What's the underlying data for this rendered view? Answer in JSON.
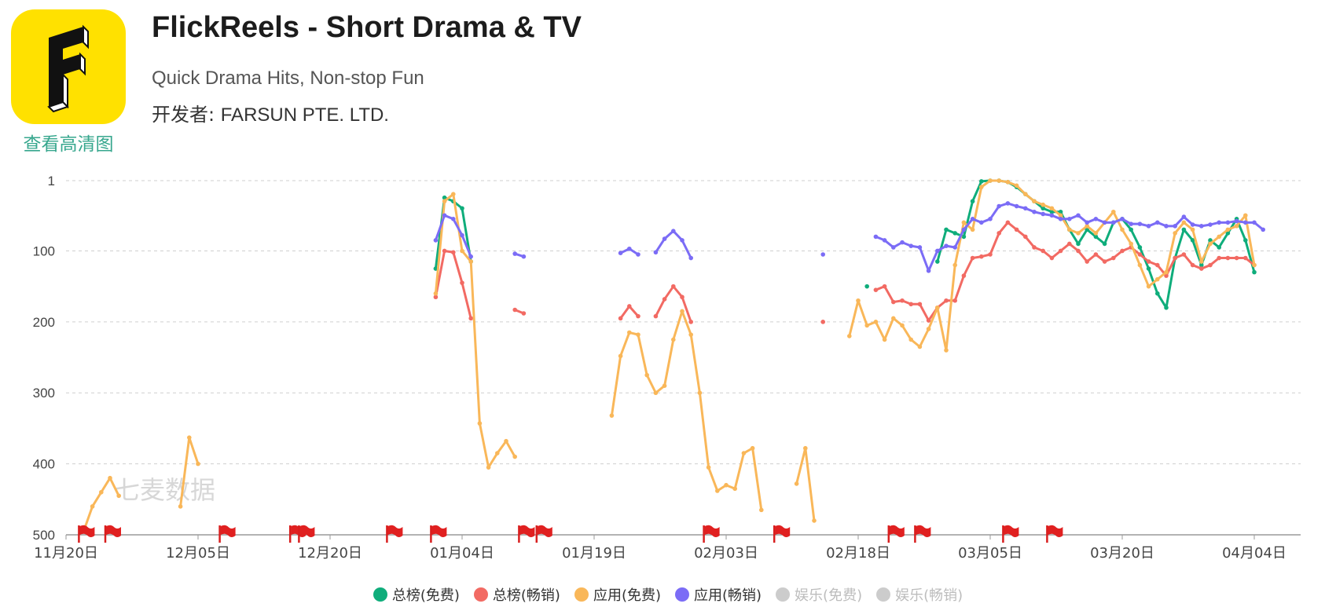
{
  "app": {
    "name": "FlickReels - Short Drama & TV",
    "subtitle": "Quick Drama Hits, Non-stop Fun",
    "developer_label": "开发者: ",
    "developer_name": "FARSUN PTE. LTD.",
    "hd_link": "查看高清图",
    "icon_color": "#FFE100",
    "watermark": "七麦数据"
  },
  "chart_data": {
    "type": "line",
    "y_axis": {
      "inverted": true,
      "ticks": [
        1,
        100,
        200,
        300,
        400,
        500
      ],
      "range": [
        1,
        500
      ]
    },
    "x_axis": {
      "start_date": "11月20日",
      "ticks": [
        "11月20日",
        "12月05日",
        "12月20日",
        "01月04日",
        "01月19日",
        "02月03日",
        "02月18日",
        "03月05日",
        "03月20日",
        "04月04日"
      ]
    },
    "grid": true,
    "legend_position": "bottom",
    "flag_days": [
      2,
      5,
      18,
      26,
      27,
      37,
      42,
      52,
      54,
      73,
      81,
      94,
      97,
      107,
      112
    ],
    "series": [
      {
        "name": "总榜(免费)",
        "color": "#0FAD7B",
        "enabled": true,
        "points": [
          [
            42,
            125
          ],
          [
            43,
            25
          ],
          [
            44,
            30
          ],
          [
            45,
            40
          ],
          [
            46,
            115
          ],
          [
            91,
            150
          ],
          [
            99,
            115
          ],
          [
            100,
            70
          ],
          [
            101,
            75
          ],
          [
            102,
            80
          ],
          [
            103,
            30
          ],
          [
            104,
            2
          ],
          [
            105,
            1
          ],
          [
            106,
            1
          ],
          [
            107,
            3
          ],
          [
            108,
            10
          ],
          [
            109,
            20
          ],
          [
            110,
            30
          ],
          [
            111,
            40
          ],
          [
            112,
            45
          ],
          [
            113,
            45
          ],
          [
            114,
            70
          ],
          [
            115,
            90
          ],
          [
            116,
            70
          ],
          [
            117,
            80
          ],
          [
            118,
            90
          ],
          [
            119,
            60
          ],
          [
            120,
            55
          ],
          [
            121,
            70
          ],
          [
            122,
            95
          ],
          [
            123,
            125
          ],
          [
            124,
            160
          ],
          [
            125,
            180
          ],
          [
            126,
            110
          ],
          [
            127,
            70
          ],
          [
            128,
            85
          ],
          [
            129,
            120
          ],
          [
            130,
            85
          ],
          [
            131,
            95
          ],
          [
            132,
            75
          ],
          [
            133,
            55
          ],
          [
            134,
            85
          ],
          [
            135,
            130
          ]
        ]
      },
      {
        "name": "总榜(畅销)",
        "color": "#F26A63",
        "enabled": true,
        "points": [
          [
            42,
            165
          ],
          [
            43,
            100
          ],
          [
            44,
            102
          ],
          [
            45,
            145
          ],
          [
            46,
            195
          ],
          [
            51,
            183
          ],
          [
            52,
            188
          ],
          [
            63,
            195
          ],
          [
            64,
            178
          ],
          [
            65,
            192
          ],
          [
            67,
            192
          ],
          [
            68,
            168
          ],
          [
            69,
            150
          ],
          [
            70,
            165
          ],
          [
            71,
            200
          ],
          [
            86,
            200
          ],
          [
            92,
            155
          ],
          [
            93,
            150
          ],
          [
            94,
            172
          ],
          [
            95,
            170
          ],
          [
            96,
            175
          ],
          [
            97,
            175
          ],
          [
            98,
            198
          ],
          [
            99,
            180
          ],
          [
            100,
            170
          ],
          [
            101,
            170
          ],
          [
            102,
            135
          ],
          [
            103,
            110
          ],
          [
            104,
            108
          ],
          [
            105,
            105
          ],
          [
            106,
            75
          ],
          [
            107,
            60
          ],
          [
            108,
            70
          ],
          [
            109,
            80
          ],
          [
            110,
            95
          ],
          [
            111,
            100
          ],
          [
            112,
            110
          ],
          [
            113,
            100
          ],
          [
            114,
            90
          ],
          [
            115,
            100
          ],
          [
            116,
            115
          ],
          [
            117,
            105
          ],
          [
            118,
            115
          ],
          [
            119,
            110
          ],
          [
            120,
            100
          ],
          [
            121,
            95
          ],
          [
            122,
            105
          ],
          [
            123,
            115
          ],
          [
            124,
            120
          ],
          [
            125,
            135
          ],
          [
            126,
            110
          ],
          [
            127,
            105
          ],
          [
            128,
            120
          ],
          [
            129,
            125
          ],
          [
            130,
            120
          ],
          [
            131,
            110
          ],
          [
            132,
            110
          ],
          [
            133,
            110
          ],
          [
            134,
            110
          ],
          [
            135,
            120
          ]
        ]
      },
      {
        "name": "应用(免费)",
        "color": "#F9B759",
        "enabled": true,
        "points": [
          [
            2,
            495
          ],
          [
            3,
            460
          ],
          [
            4,
            440
          ],
          [
            5,
            420
          ],
          [
            6,
            445
          ],
          [
            13,
            460
          ],
          [
            14,
            363
          ],
          [
            15,
            400
          ],
          [
            42,
            160
          ],
          [
            43,
            30
          ],
          [
            44,
            20
          ],
          [
            45,
            100
          ],
          [
            46,
            115
          ],
          [
            47,
            343
          ],
          [
            48,
            405
          ],
          [
            49,
            385
          ],
          [
            50,
            368
          ],
          [
            51,
            390
          ],
          [
            62,
            332
          ],
          [
            63,
            248
          ],
          [
            64,
            215
          ],
          [
            65,
            218
          ],
          [
            66,
            275
          ],
          [
            67,
            300
          ],
          [
            68,
            290
          ],
          [
            69,
            225
          ],
          [
            70,
            185
          ],
          [
            71,
            218
          ],
          [
            72,
            300
          ],
          [
            73,
            405
          ],
          [
            74,
            438
          ],
          [
            75,
            430
          ],
          [
            76,
            435
          ],
          [
            77,
            385
          ],
          [
            78,
            378
          ],
          [
            79,
            465
          ],
          [
            83,
            428
          ],
          [
            84,
            378
          ],
          [
            85,
            480
          ],
          [
            89,
            220
          ],
          [
            90,
            170
          ],
          [
            91,
            205
          ],
          [
            92,
            200
          ],
          [
            93,
            225
          ],
          [
            94,
            195
          ],
          [
            95,
            205
          ],
          [
            96,
            225
          ],
          [
            97,
            235
          ],
          [
            98,
            210
          ],
          [
            99,
            180
          ],
          [
            100,
            240
          ],
          [
            101,
            120
          ],
          [
            102,
            60
          ],
          [
            103,
            70
          ],
          [
            104,
            10
          ],
          [
            105,
            1
          ],
          [
            106,
            1
          ],
          [
            107,
            3
          ],
          [
            108,
            8
          ],
          [
            109,
            20
          ],
          [
            110,
            30
          ],
          [
            111,
            35
          ],
          [
            112,
            40
          ],
          [
            113,
            50
          ],
          [
            114,
            70
          ],
          [
            115,
            75
          ],
          [
            116,
            65
          ],
          [
            117,
            75
          ],
          [
            118,
            60
          ],
          [
            119,
            45
          ],
          [
            120,
            70
          ],
          [
            121,
            90
          ],
          [
            122,
            120
          ],
          [
            123,
            150
          ],
          [
            124,
            140
          ],
          [
            125,
            130
          ],
          [
            126,
            75
          ],
          [
            127,
            60
          ],
          [
            128,
            70
          ],
          [
            129,
            115
          ],
          [
            130,
            90
          ],
          [
            131,
            80
          ],
          [
            132,
            70
          ],
          [
            133,
            65
          ],
          [
            134,
            50
          ],
          [
            135,
            120
          ]
        ]
      },
      {
        "name": "应用(畅销)",
        "color": "#7B6CF6",
        "enabled": true,
        "points": [
          [
            42,
            85
          ],
          [
            43,
            50
          ],
          [
            44,
            55
          ],
          [
            45,
            78
          ],
          [
            46,
            108
          ],
          [
            51,
            104
          ],
          [
            52,
            108
          ],
          [
            63,
            103
          ],
          [
            64,
            97
          ],
          [
            65,
            105
          ],
          [
            67,
            102
          ],
          [
            68,
            83
          ],
          [
            69,
            72
          ],
          [
            70,
            85
          ],
          [
            71,
            110
          ],
          [
            86,
            105
          ],
          [
            92,
            80
          ],
          [
            93,
            85
          ],
          [
            94,
            95
          ],
          [
            95,
            88
          ],
          [
            96,
            93
          ],
          [
            97,
            95
          ],
          [
            98,
            128
          ],
          [
            99,
            100
          ],
          [
            100,
            93
          ],
          [
            101,
            95
          ],
          [
            102,
            70
          ],
          [
            103,
            55
          ],
          [
            104,
            60
          ],
          [
            105,
            55
          ],
          [
            106,
            37
          ],
          [
            107,
            33
          ],
          [
            108,
            37
          ],
          [
            109,
            40
          ],
          [
            110,
            45
          ],
          [
            111,
            48
          ],
          [
            112,
            50
          ],
          [
            113,
            55
          ],
          [
            114,
            55
          ],
          [
            115,
            50
          ],
          [
            116,
            60
          ],
          [
            117,
            55
          ],
          [
            118,
            60
          ],
          [
            119,
            60
          ],
          [
            120,
            55
          ],
          [
            121,
            62
          ],
          [
            122,
            62
          ],
          [
            123,
            65
          ],
          [
            124,
            60
          ],
          [
            125,
            65
          ],
          [
            126,
            65
          ],
          [
            127,
            52
          ],
          [
            128,
            63
          ],
          [
            129,
            65
          ],
          [
            130,
            63
          ],
          [
            131,
            60
          ],
          [
            132,
            60
          ],
          [
            133,
            58
          ],
          [
            134,
            60
          ],
          [
            135,
            60
          ],
          [
            136,
            70
          ]
        ]
      },
      {
        "name": "娱乐(免费)",
        "color": "#CCCCCC",
        "enabled": false,
        "points": []
      },
      {
        "name": "娱乐(畅销)",
        "color": "#CCCCCC",
        "enabled": false,
        "points": []
      }
    ]
  }
}
